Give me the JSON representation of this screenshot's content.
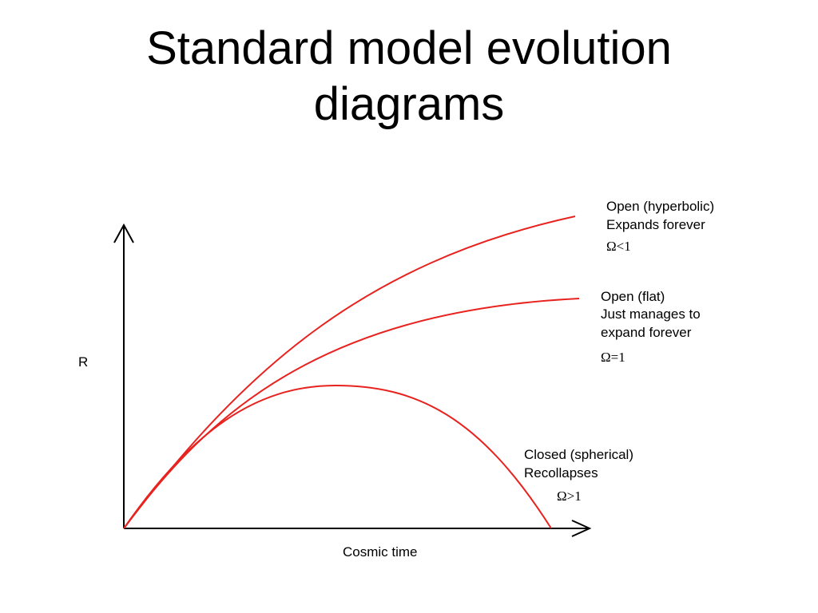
{
  "title": {
    "line1": "Standard model evolution",
    "line2": "diagrams"
  },
  "axes": {
    "y_label": "R",
    "x_label": "Cosmic time"
  },
  "curves": [
    {
      "id": "open-hyperbolic",
      "line1": "Open (hyperbolic)",
      "line2": "Expands forever",
      "omega": "Ω<1"
    },
    {
      "id": "open-flat",
      "line1": "Open (flat)",
      "line2": "Just manages to",
      "line3": "expand forever",
      "omega": "Ω=1"
    },
    {
      "id": "closed-spherical",
      "line1": "Closed (spherical)",
      "line2": "Recollapses",
      "omega": "Ω>1"
    }
  ],
  "colors": {
    "curve": "#e8231f",
    "axis": "#000000",
    "background": "#ffffff"
  }
}
